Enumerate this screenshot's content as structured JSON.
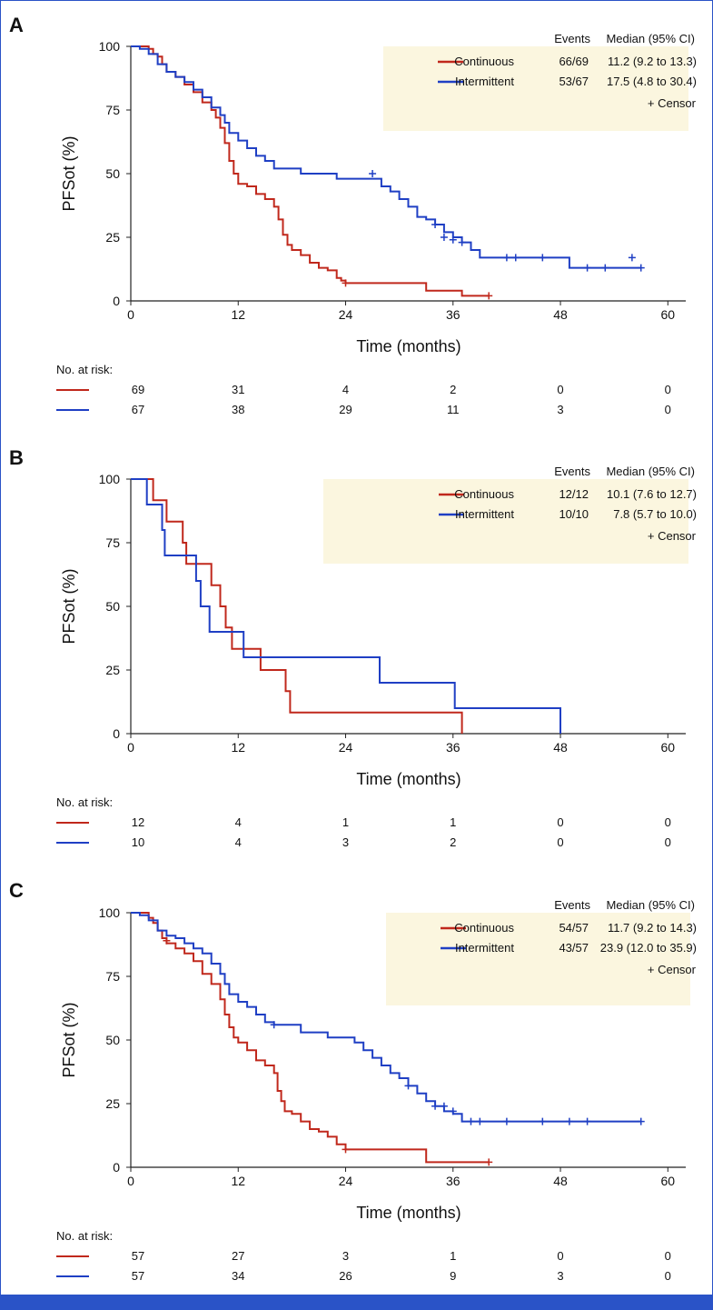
{
  "colors": {
    "continuous": "#c0281c",
    "intermittent": "#1f3fc4",
    "legend_bg": "#fbf6df",
    "frame": "#2a53c7"
  },
  "chart_data": [
    {
      "type": "line",
      "panel_label": "A",
      "title": "",
      "xlabel": "Time (months)",
      "ylabel": "PFSot (%)",
      "xlim": [
        0,
        62
      ],
      "ylim": [
        0,
        100
      ],
      "xticks": [
        0,
        12,
        24,
        36,
        48,
        60
      ],
      "yticks": [
        0,
        25,
        50,
        75,
        100
      ],
      "legend": {
        "placement": "top-right",
        "col_events": "Events",
        "col_median": "Median (95% CI)",
        "censor_label": "+ Censor"
      },
      "series": [
        {
          "name": "Continuous",
          "key": "continuous",
          "events": "66/69",
          "median": "11.2 (9.2 to 13.3)",
          "points": [
            [
              0,
              100
            ],
            [
              1.6,
              100
            ],
            [
              2,
              99
            ],
            [
              2.5,
              97
            ],
            [
              3,
              96
            ],
            [
              3.5,
              93
            ],
            [
              4,
              90
            ],
            [
              5,
              88
            ],
            [
              6,
              85
            ],
            [
              7,
              82
            ],
            [
              8,
              78
            ],
            [
              9,
              75
            ],
            [
              9.5,
              72
            ],
            [
              10,
              68
            ],
            [
              10.5,
              62
            ],
            [
              11,
              55
            ],
            [
              11.5,
              50
            ],
            [
              12,
              46
            ],
            [
              13,
              45
            ],
            [
              14,
              42
            ],
            [
              15,
              40
            ],
            [
              16,
              37
            ],
            [
              16.5,
              32
            ],
            [
              17,
              26
            ],
            [
              17.5,
              22
            ],
            [
              18,
              20
            ],
            [
              19,
              18
            ],
            [
              20,
              15
            ],
            [
              21,
              13
            ],
            [
              22,
              12
            ],
            [
              23,
              9
            ],
            [
              23.5,
              8
            ],
            [
              24,
              7
            ],
            [
              32,
              7
            ],
            [
              33,
              4
            ],
            [
              36,
              4
            ],
            [
              37,
              2
            ],
            [
              40,
              2
            ]
          ],
          "censors": [
            [
              24,
              7
            ],
            [
              40,
              2
            ]
          ]
        },
        {
          "name": "Intermittent",
          "key": "intermittent",
          "events": "53/67",
          "median": "17.5 (4.8 to 30.4)",
          "points": [
            [
              0,
              100
            ],
            [
              1,
              99
            ],
            [
              2,
              97
            ],
            [
              3,
              93
            ],
            [
              4,
              90
            ],
            [
              5,
              88
            ],
            [
              6,
              86
            ],
            [
              7,
              83
            ],
            [
              8,
              80
            ],
            [
              9,
              76
            ],
            [
              10,
              73
            ],
            [
              10.5,
              70
            ],
            [
              11,
              66
            ],
            [
              12,
              63
            ],
            [
              13,
              60
            ],
            [
              14,
              57
            ],
            [
              15,
              55
            ],
            [
              16,
              52
            ],
            [
              18,
              52
            ],
            [
              19,
              50
            ],
            [
              22,
              50
            ],
            [
              23,
              48
            ],
            [
              27,
              48
            ],
            [
              28,
              45
            ],
            [
              29,
              43
            ],
            [
              30,
              40
            ],
            [
              31,
              37
            ],
            [
              32,
              33
            ],
            [
              33,
              32
            ],
            [
              34,
              30
            ],
            [
              35,
              27
            ],
            [
              36,
              25
            ],
            [
              37,
              23
            ],
            [
              38,
              20
            ],
            [
              39,
              17
            ],
            [
              48,
              17
            ],
            [
              49,
              13
            ],
            [
              57,
              13
            ]
          ],
          "censors": [
            [
              27,
              50
            ],
            [
              34,
              30
            ],
            [
              35,
              25
            ],
            [
              36,
              24
            ],
            [
              37,
              23
            ],
            [
              42,
              17
            ],
            [
              43,
              17
            ],
            [
              46,
              17
            ],
            [
              56,
              17
            ],
            [
              51,
              13
            ],
            [
              53,
              13
            ],
            [
              57,
              13
            ]
          ]
        }
      ],
      "risk_table": {
        "label": "No. at risk:",
        "rows": [
          {
            "key": "continuous",
            "values": [
              "69",
              "31",
              "4",
              "2",
              "0",
              "0"
            ]
          },
          {
            "key": "intermittent",
            "values": [
              "67",
              "38",
              "29",
              "11",
              "3",
              "0"
            ]
          }
        ]
      }
    },
    {
      "type": "line",
      "panel_label": "B",
      "title": "",
      "xlabel": "Time (months)",
      "ylabel": "PFSot (%)",
      "xlim": [
        0,
        62
      ],
      "ylim": [
        0,
        100
      ],
      "xticks": [
        0,
        12,
        24,
        36,
        48,
        60
      ],
      "yticks": [
        0,
        25,
        50,
        75,
        100
      ],
      "legend": {
        "placement": "top-right",
        "col_events": "Events",
        "col_median": "Median (95% CI)",
        "censor_label": "+ Censor"
      },
      "series": [
        {
          "name": "Continuous",
          "key": "continuous",
          "events": "12/12",
          "median": "10.1 (7.6 to 12.7)",
          "points": [
            [
              0,
              100
            ],
            [
              2.5,
              100
            ],
            [
              2.5,
              91.7
            ],
            [
              4,
              91.7
            ],
            [
              4,
              83.3
            ],
            [
              5.8,
              83.3
            ],
            [
              5.8,
              75
            ],
            [
              6.2,
              75
            ],
            [
              6.2,
              66.7
            ],
            [
              9,
              66.7
            ],
            [
              9,
              58.3
            ],
            [
              10,
              58.3
            ],
            [
              10,
              50
            ],
            [
              10.6,
              50
            ],
            [
              10.6,
              41.7
            ],
            [
              11.3,
              41.7
            ],
            [
              11.3,
              33.3
            ],
            [
              14.5,
              33.3
            ],
            [
              14.5,
              25
            ],
            [
              17.3,
              25
            ],
            [
              17.3,
              16.7
            ],
            [
              17.8,
              16.7
            ],
            [
              17.8,
              8.3
            ],
            [
              37,
              8.3
            ],
            [
              37,
              0
            ]
          ],
          "censors": []
        },
        {
          "name": "Intermittent",
          "key": "intermittent",
          "events": "10/10",
          "median": "7.8 (5.7 to 10.0)",
          "points": [
            [
              0,
              100
            ],
            [
              1.8,
              100
            ],
            [
              1.8,
              90
            ],
            [
              3.5,
              90
            ],
            [
              3.5,
              80
            ],
            [
              3.8,
              80
            ],
            [
              3.8,
              70
            ],
            [
              7.3,
              70
            ],
            [
              7.3,
              60
            ],
            [
              7.8,
              60
            ],
            [
              7.8,
              50
            ],
            [
              8.8,
              50
            ],
            [
              8.8,
              40
            ],
            [
              12.6,
              40
            ],
            [
              12.6,
              30
            ],
            [
              27.8,
              30
            ],
            [
              27.8,
              20
            ],
            [
              36.2,
              20
            ],
            [
              36.2,
              10
            ],
            [
              48,
              10
            ],
            [
              48,
              0
            ]
          ],
          "censors": []
        }
      ],
      "risk_table": {
        "label": "No. at risk:",
        "rows": [
          {
            "key": "continuous",
            "values": [
              "12",
              "4",
              "1",
              "1",
              "0",
              "0"
            ]
          },
          {
            "key": "intermittent",
            "values": [
              "10",
              "4",
              "3",
              "2",
              "0",
              "0"
            ]
          }
        ]
      }
    },
    {
      "type": "line",
      "panel_label": "C",
      "title": "",
      "xlabel": "Time (months)",
      "ylabel": "PFSot (%)",
      "xlim": [
        0,
        62
      ],
      "ylim": [
        0,
        100
      ],
      "xticks": [
        0,
        12,
        24,
        36,
        48,
        60
      ],
      "yticks": [
        0,
        25,
        50,
        75,
        100
      ],
      "legend": {
        "placement": "top-right",
        "col_events": "Events",
        "col_median": "Median (95% CI)",
        "censor_label": "+ Censor"
      },
      "series": [
        {
          "name": "Continuous",
          "key": "continuous",
          "events": "54/57",
          "median": "11.7 (9.2 to 14.3)",
          "points": [
            [
              0,
              100
            ],
            [
              1.7,
              100
            ],
            [
              2,
              98
            ],
            [
              2.5,
              96
            ],
            [
              3,
              93
            ],
            [
              3.5,
              90
            ],
            [
              4,
              88
            ],
            [
              5,
              86
            ],
            [
              6,
              84
            ],
            [
              7,
              81
            ],
            [
              8,
              76
            ],
            [
              9,
              72
            ],
            [
              10,
              66
            ],
            [
              10.5,
              60
            ],
            [
              11,
              55
            ],
            [
              11.5,
              51
            ],
            [
              12,
              49
            ],
            [
              13,
              46
            ],
            [
              14,
              42
            ],
            [
              15,
              40
            ],
            [
              16,
              37
            ],
            [
              16.4,
              30
            ],
            [
              16.8,
              26
            ],
            [
              17.2,
              22
            ],
            [
              18,
              21
            ],
            [
              19,
              18
            ],
            [
              20,
              15
            ],
            [
              21,
              14
            ],
            [
              22,
              12
            ],
            [
              23,
              9
            ],
            [
              24,
              7
            ],
            [
              32,
              7
            ],
            [
              33,
              2
            ],
            [
              40,
              2
            ]
          ],
          "censors": [
            [
              4,
              89
            ],
            [
              24,
              7
            ],
            [
              40,
              2
            ]
          ]
        },
        {
          "name": "Intermittent",
          "key": "intermittent",
          "events": "43/57",
          "median": "23.9 (12.0 to 35.9)",
          "points": [
            [
              0,
              100
            ],
            [
              1,
              99
            ],
            [
              2,
              97
            ],
            [
              3,
              93
            ],
            [
              4,
              91
            ],
            [
              5,
              90
            ],
            [
              6,
              88
            ],
            [
              7,
              86
            ],
            [
              8,
              84
            ],
            [
              9,
              80
            ],
            [
              10,
              76
            ],
            [
              10.5,
              72
            ],
            [
              11,
              68
            ],
            [
              12,
              65
            ],
            [
              13,
              63
            ],
            [
              14,
              60
            ],
            [
              15,
              57
            ],
            [
              16,
              56
            ],
            [
              18,
              56
            ],
            [
              19,
              53
            ],
            [
              21,
              53
            ],
            [
              22,
              51
            ],
            [
              24,
              51
            ],
            [
              25,
              49
            ],
            [
              26,
              46
            ],
            [
              27,
              43
            ],
            [
              28,
              40
            ],
            [
              29,
              37
            ],
            [
              30,
              35
            ],
            [
              31,
              32
            ],
            [
              32,
              29
            ],
            [
              33,
              26
            ],
            [
              34,
              24
            ],
            [
              35,
              22
            ],
            [
              36,
              21
            ],
            [
              37,
              18
            ],
            [
              57,
              18
            ]
          ],
          "censors": [
            [
              16,
              56
            ],
            [
              31,
              32
            ],
            [
              34,
              24
            ],
            [
              35,
              24
            ],
            [
              36,
              22
            ],
            [
              38,
              18
            ],
            [
              39,
              18
            ],
            [
              42,
              18
            ],
            [
              46,
              18
            ],
            [
              49,
              18
            ],
            [
              51,
              18
            ],
            [
              57,
              18
            ]
          ]
        }
      ],
      "risk_table": {
        "label": "No. at risk:",
        "rows": [
          {
            "key": "continuous",
            "values": [
              "57",
              "27",
              "3",
              "1",
              "0",
              "0"
            ]
          },
          {
            "key": "intermittent",
            "values": [
              "57",
              "34",
              "26",
              "9",
              "3",
              "0"
            ]
          }
        ]
      }
    }
  ]
}
